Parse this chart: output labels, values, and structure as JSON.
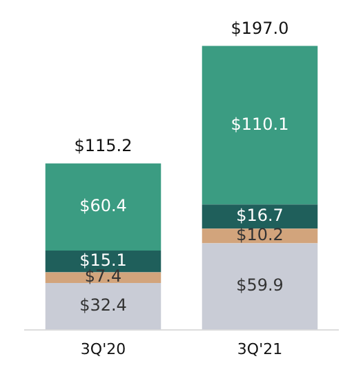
{
  "chart_data": {
    "type": "bar",
    "stacked": true,
    "categories": [
      "3Q'20",
      "3Q'21"
    ],
    "series": [
      {
        "color": "#c9ccd6",
        "values": [
          32.4,
          59.9
        ],
        "value_labels": [
          "$32.4",
          "$59.9"
        ]
      },
      {
        "color": "#d2a47c",
        "values": [
          7.4,
          10.2
        ],
        "value_labels": [
          "$7.4",
          "$10.2"
        ]
      },
      {
        "color": "#1f5f5b",
        "values": [
          15.1,
          16.7
        ],
        "value_labels": [
          "$15.1",
          "$16.7"
        ]
      },
      {
        "color": "#3b9c82",
        "values": [
          60.4,
          110.1
        ],
        "value_labels": [
          "$60.4",
          "$110.1"
        ]
      }
    ],
    "totals": [
      "$115.2",
      "$197.0"
    ],
    "grid": false,
    "legend": false
  }
}
